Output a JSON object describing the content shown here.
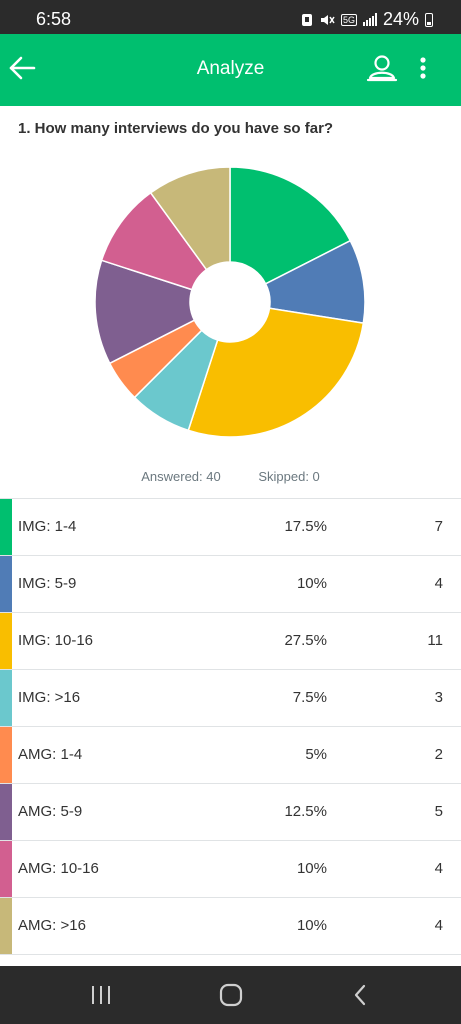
{
  "status_bar": {
    "time": "6:58",
    "battery": "24%",
    "network": "5G"
  },
  "app_bar": {
    "title": "Analyze",
    "back_icon": "arrow-left-icon",
    "user_icon": "user-share-icon",
    "more_icon": "more-vertical-icon"
  },
  "question": {
    "title": "1. How many interviews do you have so far?",
    "answered": "Answered: 40",
    "skipped": "Skipped: 0"
  },
  "chart_data": {
    "type": "pie",
    "categories": [
      "IMG: 1-4",
      "IMG: 5-9",
      "IMG: 10-16",
      "IMG: >16",
      "AMG: 1-4",
      "AMG: 5-9",
      "AMG: 10-16",
      "AMG: >16"
    ],
    "values": [
      7,
      4,
      11,
      3,
      2,
      5,
      4,
      4
    ],
    "percents": [
      "17.5%",
      "10%",
      "27.5%",
      "7.5%",
      "5%",
      "12.5%",
      "10%",
      "10%"
    ],
    "colors": [
      "#00bf6f",
      "#507cb6",
      "#f9be00",
      "#6bc8cd",
      "#ff8b4f",
      "#7f5f90",
      "#d25f90",
      "#c7b879"
    ],
    "donut": true
  },
  "nav_bar": {
    "recents_icon": "recent-apps-icon",
    "home_icon": "home-icon",
    "back_icon": "back-chevron-icon"
  }
}
